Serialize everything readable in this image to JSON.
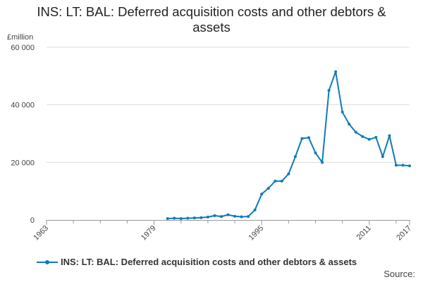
{
  "title_line1": "INS: LT: BAL: Deferred acquisition costs and other debtors &",
  "title_line2": "assets",
  "unit_label": "£million",
  "source_label": "Source:",
  "chart_data": {
    "type": "line",
    "title": "INS: LT: BAL: Deferred acquisition costs and other debtors & assets",
    "ylabel": "£million",
    "xlabel": "",
    "xlim": [
      1963,
      2017
    ],
    "ylim": [
      0,
      60000
    ],
    "x_ticks": [
      1963,
      1979,
      1995,
      2011,
      2017
    ],
    "x_tick_labels": [
      "1963",
      "1979",
      "1995",
      "2011",
      "2017"
    ],
    "y_ticks": [
      0,
      20000,
      40000,
      60000
    ],
    "y_tick_labels": [
      "0",
      "20 000",
      "40 000",
      "60 000"
    ],
    "grid": "horizontal",
    "legend_position": "bottom-left",
    "series": [
      {
        "name": "INS: LT: BAL: Deferred acquisition costs and other debtors & assets",
        "color": "#0e7bbd",
        "x": [
          1981,
          1982,
          1983,
          1984,
          1985,
          1986,
          1987,
          1988,
          1989,
          1990,
          1991,
          1992,
          1993,
          1994,
          1995,
          1996,
          1997,
          1998,
          1999,
          2000,
          2001,
          2002,
          2003,
          2004,
          2005,
          2006,
          2007,
          2008,
          2009,
          2010,
          2011,
          2012,
          2013,
          2014,
          2015,
          2016,
          2017
        ],
        "values": [
          500,
          600,
          500,
          600,
          700,
          800,
          1000,
          1500,
          1200,
          1800,
          1300,
          1100,
          1200,
          3500,
          9000,
          11000,
          13500,
          13500,
          16000,
          22000,
          28300,
          28600,
          23300,
          20000,
          45000,
          51500,
          37500,
          33300,
          30500,
          29000,
          28000,
          28700,
          22000,
          29300,
          19000,
          19000,
          18800
        ]
      }
    ]
  }
}
